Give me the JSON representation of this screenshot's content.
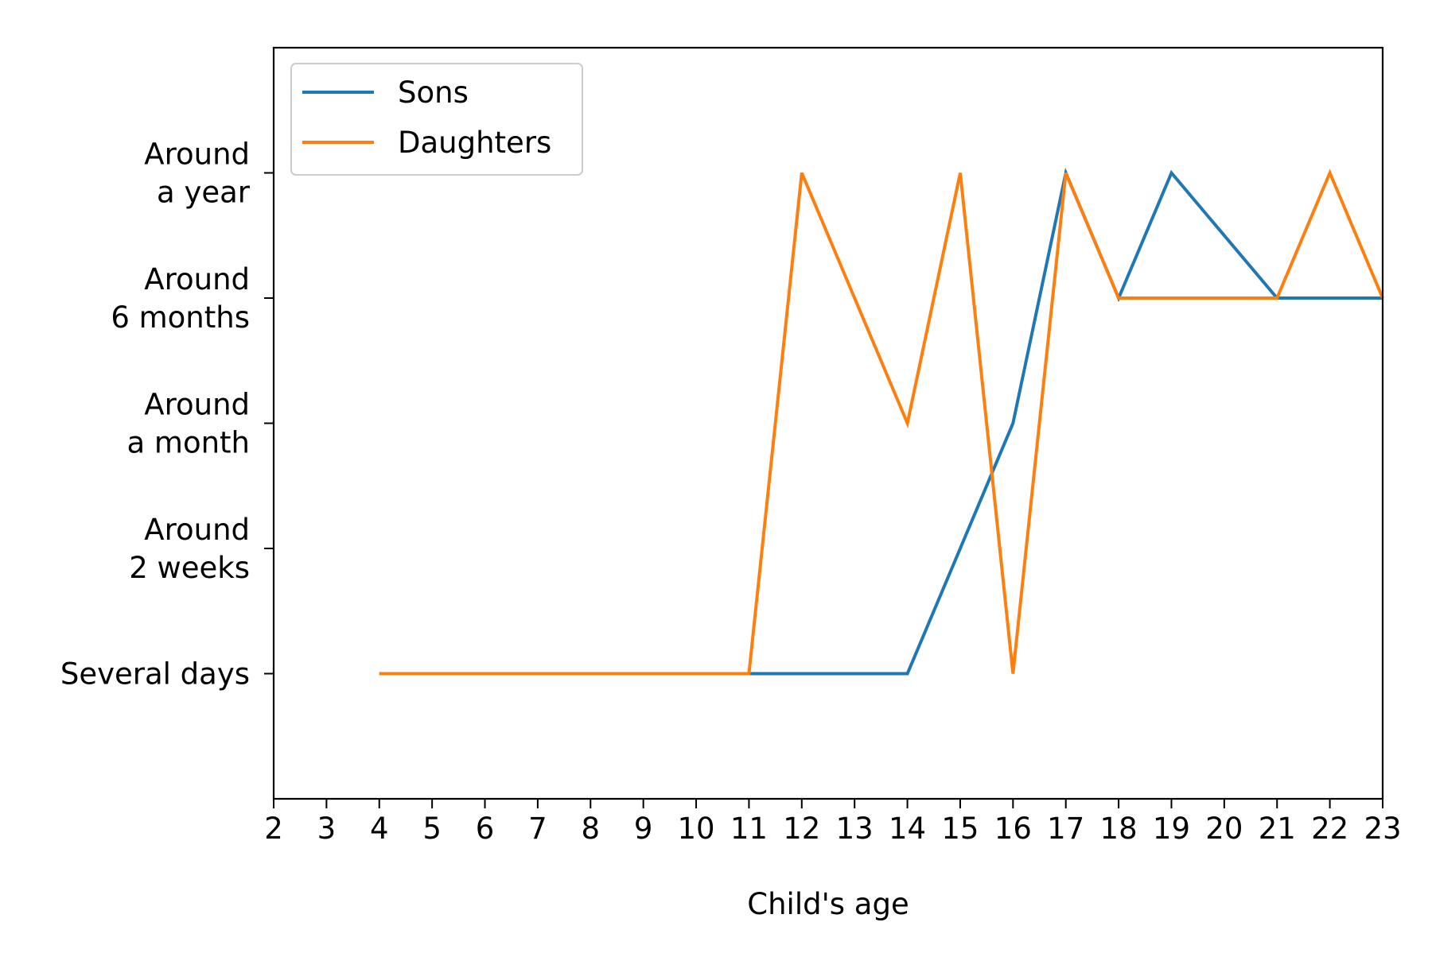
{
  "chart_data": {
    "type": "line",
    "xlabel": "Child's age",
    "ylabel": "",
    "x_ticks": [
      "2",
      "3",
      "4",
      "5",
      "6",
      "7",
      "8",
      "9",
      "10",
      "11",
      "12",
      "13",
      "14",
      "15",
      "16",
      "17",
      "18",
      "19",
      "20",
      "21",
      "22",
      "23"
    ],
    "y_ticks": [
      {
        "lines": [
          "Several days"
        ]
      },
      {
        "lines": [
          "Around",
          "2 weeks"
        ]
      },
      {
        "lines": [
          "Around",
          "a month"
        ]
      },
      {
        "lines": [
          "Around",
          "6 months"
        ]
      },
      {
        "lines": [
          "Around",
          "a year"
        ]
      }
    ],
    "ylim": [
      -1,
      5
    ],
    "series": [
      {
        "name": "Sons",
        "color": "#1f77b4",
        "points": [
          [
            4,
            0
          ],
          [
            5,
            0
          ],
          [
            6,
            0
          ],
          [
            7,
            0
          ],
          [
            8,
            0
          ],
          [
            9,
            0
          ],
          [
            10,
            0
          ],
          [
            11,
            0
          ],
          [
            12,
            0
          ],
          [
            13,
            0
          ],
          [
            14,
            0
          ],
          [
            15,
            1
          ],
          [
            16,
            2
          ],
          [
            17,
            4
          ],
          [
            18,
            3
          ],
          [
            19,
            4
          ],
          [
            20,
            3.5
          ],
          [
            21,
            3
          ],
          [
            22,
            3
          ],
          [
            23,
            3
          ]
        ]
      },
      {
        "name": "Daughters",
        "color": "#ff7f0e",
        "points": [
          [
            4,
            0
          ],
          [
            5,
            0
          ],
          [
            6,
            0
          ],
          [
            7,
            0
          ],
          [
            8,
            0
          ],
          [
            9,
            0
          ],
          [
            10,
            0
          ],
          [
            11,
            0
          ],
          [
            12,
            4
          ],
          [
            13,
            3
          ],
          [
            14,
            2
          ],
          [
            15,
            4
          ],
          [
            16,
            0
          ],
          [
            17,
            4
          ],
          [
            18,
            3
          ],
          [
            19,
            3
          ],
          [
            20,
            3
          ],
          [
            21,
            3
          ],
          [
            22,
            4
          ],
          [
            23,
            3
          ]
        ]
      }
    ],
    "legend_position": "upper-left",
    "grid": false
  }
}
